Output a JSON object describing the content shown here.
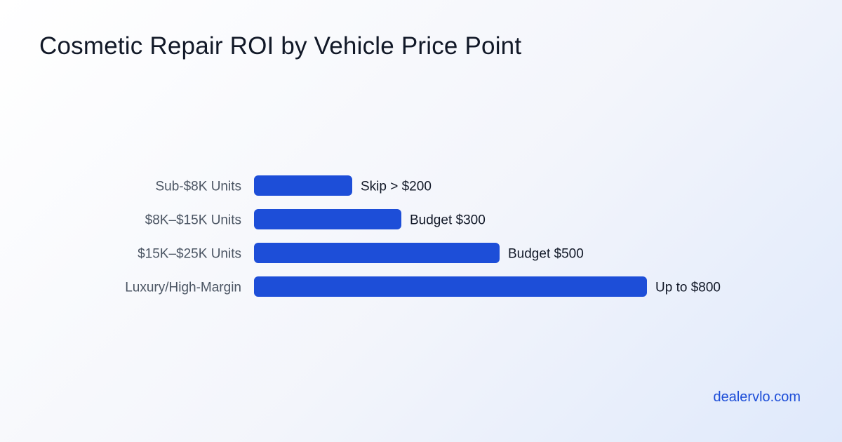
{
  "page": {
    "title": "Cosmetic Repair ROI by Vehicle Price Point",
    "brand": "dealervlo.com"
  },
  "chart_data": {
    "type": "bar",
    "orientation": "horizontal",
    "title": "Cosmetic Repair ROI by Vehicle Price Point",
    "categories": [
      "Sub-$8K Units",
      "$8K–$15K Units",
      "$15K–$25K Units",
      "Luxury/High-Margin"
    ],
    "values": [
      200,
      300,
      500,
      800
    ],
    "data_labels": [
      "Skip > $200",
      "Budget $300",
      "Budget $500",
      "Up to $800"
    ],
    "xlim": [
      0,
      800
    ],
    "grid": false,
    "bar_color": "#1d4ed8"
  }
}
